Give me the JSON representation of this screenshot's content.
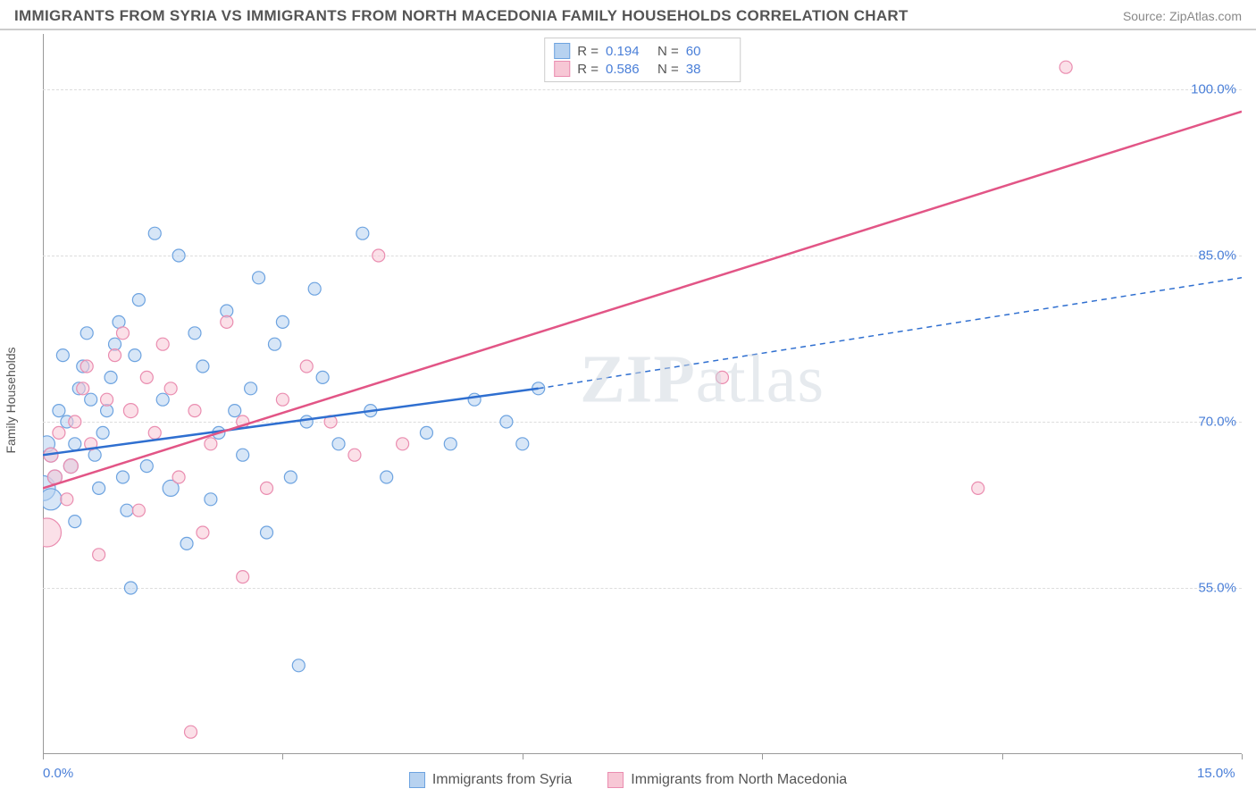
{
  "title": "IMMIGRANTS FROM SYRIA VS IMMIGRANTS FROM NORTH MACEDONIA FAMILY HOUSEHOLDS CORRELATION CHART",
  "source": "Source: ZipAtlas.com",
  "watermark": "ZIPatlas",
  "chart": {
    "type": "scatter",
    "yaxis_label": "Family Households",
    "xlim": [
      0,
      15
    ],
    "ylim": [
      40,
      105
    ],
    "grid_color": "#dddddd",
    "background_color": "#ffffff",
    "y_ticks": [
      55,
      70,
      85,
      100
    ],
    "y_tick_labels": [
      "55.0%",
      "70.0%",
      "85.0%",
      "100.0%"
    ],
    "x_ticks": [
      0,
      3,
      6,
      9,
      12,
      15
    ],
    "x_labels_shown": {
      "0": "0.0%",
      "15": "15.0%"
    },
    "tick_label_color": "#4a7fd8",
    "tick_label_fontsize": 15,
    "axis_label_fontsize": 14,
    "marker_radius": 7,
    "marker_opacity": 0.55,
    "line_width": 2.5,
    "series": [
      {
        "key": "syria",
        "label": "Immigrants from Syria",
        "color_fill": "#b7d2f0",
        "color_stroke": "#6da3e0",
        "line_color": "#2f6fd0",
        "R": "0.194",
        "N": "60",
        "regression": {
          "x1": 0,
          "y1": 67,
          "x2_solid": 6.2,
          "y2_solid": 73,
          "x2": 15,
          "y2": 83,
          "dashed_after_solid": true
        },
        "points": [
          [
            0.0,
            64,
            14
          ],
          [
            0.05,
            68,
            9
          ],
          [
            0.1,
            67,
            8
          ],
          [
            0.1,
            63,
            12
          ],
          [
            0.15,
            65,
            8
          ],
          [
            0.2,
            71,
            7
          ],
          [
            0.25,
            76,
            7
          ],
          [
            0.3,
            70,
            7
          ],
          [
            0.35,
            66,
            8
          ],
          [
            0.4,
            68,
            7
          ],
          [
            0.45,
            73,
            7
          ],
          [
            0.5,
            75,
            7
          ],
          [
            0.55,
            78,
            7
          ],
          [
            0.6,
            72,
            7
          ],
          [
            0.65,
            67,
            7
          ],
          [
            0.7,
            64,
            7
          ],
          [
            0.75,
            69,
            7
          ],
          [
            0.8,
            71,
            7
          ],
          [
            0.85,
            74,
            7
          ],
          [
            0.9,
            77,
            7
          ],
          [
            0.95,
            79,
            7
          ],
          [
            1.0,
            65,
            7
          ],
          [
            1.05,
            62,
            7
          ],
          [
            1.1,
            55,
            7
          ],
          [
            1.15,
            76,
            7
          ],
          [
            1.2,
            81,
            7
          ],
          [
            1.3,
            66,
            7
          ],
          [
            1.4,
            87,
            7
          ],
          [
            1.5,
            72,
            7
          ],
          [
            1.6,
            64,
            9
          ],
          [
            1.7,
            85,
            7
          ],
          [
            1.8,
            59,
            7
          ],
          [
            1.9,
            78,
            7
          ],
          [
            2.0,
            75,
            7
          ],
          [
            2.1,
            63,
            7
          ],
          [
            2.2,
            69,
            7
          ],
          [
            2.3,
            80,
            7
          ],
          [
            2.4,
            71,
            7
          ],
          [
            2.5,
            67,
            7
          ],
          [
            2.6,
            73,
            7
          ],
          [
            2.7,
            83,
            7
          ],
          [
            2.8,
            60,
            7
          ],
          [
            2.9,
            77,
            7
          ],
          [
            3.0,
            79,
            7
          ],
          [
            3.1,
            65,
            7
          ],
          [
            3.2,
            48,
            7
          ],
          [
            3.3,
            70,
            7
          ],
          [
            3.4,
            82,
            7
          ],
          [
            3.5,
            74,
            7
          ],
          [
            3.7,
            68,
            7
          ],
          [
            4.0,
            87,
            7
          ],
          [
            4.1,
            71,
            7
          ],
          [
            4.3,
            65,
            7
          ],
          [
            4.8,
            69,
            7
          ],
          [
            5.1,
            68,
            7
          ],
          [
            5.4,
            72,
            7
          ],
          [
            5.8,
            70,
            7
          ],
          [
            6.0,
            68,
            7
          ],
          [
            6.2,
            73,
            7
          ],
          [
            0.4,
            61,
            7
          ]
        ]
      },
      {
        "key": "macedonia",
        "label": "Immigrants from North Macedonia",
        "color_fill": "#f7c7d5",
        "color_stroke": "#ea8db0",
        "line_color": "#e25586",
        "R": "0.586",
        "N": "38",
        "regression": {
          "x1": 0,
          "y1": 64,
          "x2_solid": 15,
          "y2_solid": 98,
          "x2": 15,
          "y2": 98,
          "dashed_after_solid": false
        },
        "points": [
          [
            0.05,
            60,
            16
          ],
          [
            0.1,
            67,
            8
          ],
          [
            0.15,
            65,
            8
          ],
          [
            0.2,
            69,
            7
          ],
          [
            0.3,
            63,
            7
          ],
          [
            0.35,
            66,
            8
          ],
          [
            0.4,
            70,
            7
          ],
          [
            0.5,
            73,
            7
          ],
          [
            0.55,
            75,
            7
          ],
          [
            0.6,
            68,
            7
          ],
          [
            0.7,
            58,
            7
          ],
          [
            0.8,
            72,
            7
          ],
          [
            0.9,
            76,
            7
          ],
          [
            1.0,
            78,
            7
          ],
          [
            1.1,
            71,
            8
          ],
          [
            1.2,
            62,
            7
          ],
          [
            1.3,
            74,
            7
          ],
          [
            1.4,
            69,
            7
          ],
          [
            1.5,
            77,
            7
          ],
          [
            1.6,
            73,
            7
          ],
          [
            1.7,
            65,
            7
          ],
          [
            1.85,
            42,
            7
          ],
          [
            1.9,
            71,
            7
          ],
          [
            2.0,
            60,
            7
          ],
          [
            2.1,
            68,
            7
          ],
          [
            2.3,
            79,
            7
          ],
          [
            2.5,
            70,
            7
          ],
          [
            2.5,
            56,
            7
          ],
          [
            2.8,
            64,
            7
          ],
          [
            3.0,
            72,
            7
          ],
          [
            3.3,
            75,
            7
          ],
          [
            3.6,
            70,
            7
          ],
          [
            3.9,
            67,
            7
          ],
          [
            4.2,
            85,
            7
          ],
          [
            4.5,
            68,
            7
          ],
          [
            8.5,
            74,
            7
          ],
          [
            11.7,
            64,
            7
          ],
          [
            12.8,
            102,
            7
          ]
        ]
      }
    ]
  },
  "legend_bottom": [
    {
      "swatch_fill": "#b7d2f0",
      "swatch_stroke": "#6da3e0",
      "label": "Immigrants from Syria"
    },
    {
      "swatch_fill": "#f7c7d5",
      "swatch_stroke": "#ea8db0",
      "label": "Immigrants from North Macedonia"
    }
  ],
  "r_legend_rows": [
    {
      "swatch_fill": "#b7d2f0",
      "swatch_stroke": "#6da3e0",
      "R_label": "R =",
      "R": "0.194",
      "N_label": "N =",
      "N": "60"
    },
    {
      "swatch_fill": "#f7c7d5",
      "swatch_stroke": "#ea8db0",
      "R_label": "R =",
      "R": "0.586",
      "N_label": "N =",
      "N": "38"
    }
  ]
}
